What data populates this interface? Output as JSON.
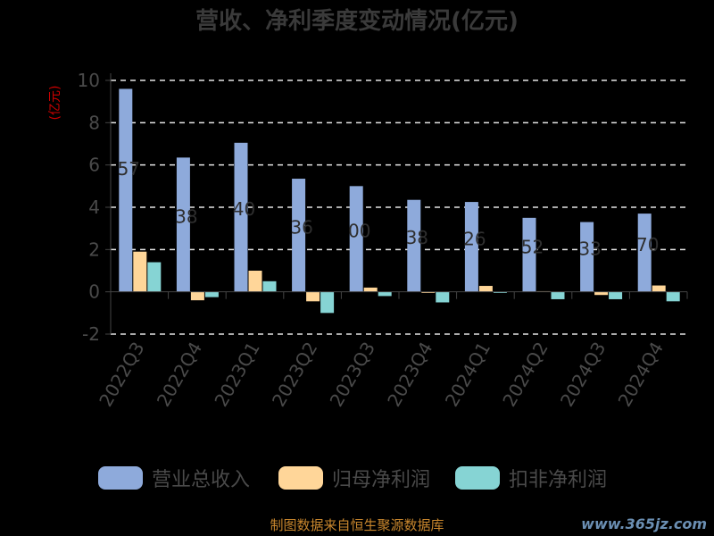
{
  "chart_data": {
    "type": "bar",
    "title": "营收、净利季度变动情况(亿元)",
    "ylabel": "(亿元)",
    "xlabel": "",
    "ylim": [
      -2,
      10
    ],
    "yticks": [
      -2,
      0,
      2,
      4,
      6,
      8,
      10
    ],
    "grid": true,
    "legend_position": "bottom",
    "categories": [
      "2022Q3",
      "2022Q4",
      "2023Q1",
      "2023Q2",
      "2023Q3",
      "2023Q4",
      "2024Q1",
      "2024Q2",
      "2024Q3",
      "2024Q4"
    ],
    "series": [
      {
        "name": "营业总收入",
        "color": "#8eaadb",
        "values": [
          9.6,
          6.35,
          7.05,
          5.35,
          5.0,
          4.35,
          4.25,
          3.5,
          3.3,
          3.7
        ]
      },
      {
        "name": "归母净利润",
        "color": "#ffd699",
        "values": [
          1.9,
          -0.4,
          1.0,
          -0.45,
          0.2,
          -0.05,
          0.28,
          0.03,
          -0.15,
          0.3
        ]
      },
      {
        "name": "扣非净利润",
        "color": "#86d4d4",
        "values": [
          1.4,
          -0.25,
          0.5,
          -1.0,
          -0.2,
          -0.5,
          -0.05,
          -0.35,
          -0.35,
          -0.45
        ]
      }
    ],
    "data_labels": [
      "57",
      "38",
      "40",
      "36",
      "00",
      "38",
      "26",
      "52",
      "33",
      "70"
    ]
  },
  "source_text": "制图数据来自恒生聚源数据库",
  "watermark_text": "www.365jz.com"
}
